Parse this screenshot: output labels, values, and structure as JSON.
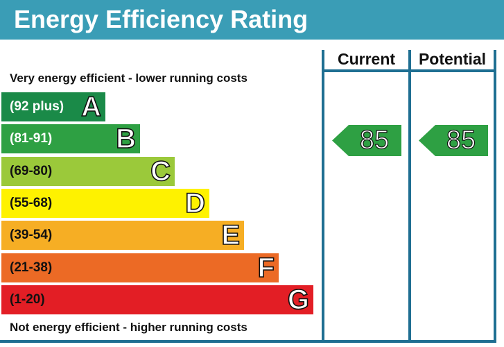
{
  "header": {
    "title": "Energy Efficiency Rating",
    "color": "#3a9db6"
  },
  "notes": {
    "top": "Very energy efficient - lower running costs",
    "bottom": "Not energy efficient - higher running costs"
  },
  "chart_data": {
    "type": "bar",
    "title": "Energy Efficiency Rating",
    "bands": [
      {
        "letter": "A",
        "range": "(92 plus)",
        "color": "#1a8a48",
        "text_color": "#ffffff"
      },
      {
        "letter": "B",
        "range": "(81-91)",
        "color": "#2ea043",
        "text_color": "#ffffff"
      },
      {
        "letter": "C",
        "range": "(69-80)",
        "color": "#9bc93a",
        "text_color": "#111111"
      },
      {
        "letter": "D",
        "range": "(55-68)",
        "color": "#fef200",
        "text_color": "#111111"
      },
      {
        "letter": "E",
        "range": "(39-54)",
        "color": "#f6ae24",
        "text_color": "#111111"
      },
      {
        "letter": "F",
        "range": "(21-38)",
        "color": "#ec6a25",
        "text_color": "#111111"
      },
      {
        "letter": "G",
        "range": "(1-20)",
        "color": "#e31e25",
        "text_color": "#111111"
      }
    ],
    "columns": [
      "Current",
      "Potential"
    ],
    "ratings": [
      {
        "column": "Current",
        "value": 85,
        "band": "B",
        "color": "#2ea043"
      },
      {
        "column": "Potential",
        "value": 85,
        "band": "B",
        "color": "#2ea043"
      }
    ]
  }
}
